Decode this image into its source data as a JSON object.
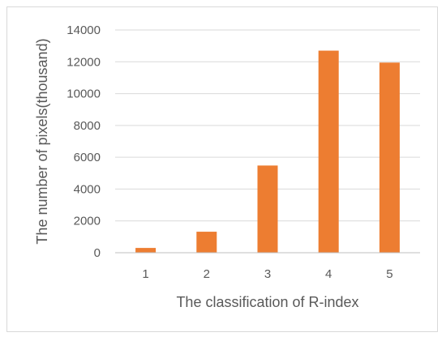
{
  "chart_data": {
    "type": "bar",
    "title": "",
    "xlabel": "The classification of R-index",
    "ylabel": "The number of pixels(thousand)",
    "categories": [
      "1",
      "2",
      "3",
      "4",
      "5"
    ],
    "values": [
      300,
      1320,
      5480,
      12700,
      11950
    ],
    "ylim": [
      0,
      14000
    ],
    "yticks": [
      0,
      2000,
      4000,
      6000,
      8000,
      10000,
      12000,
      14000
    ],
    "grid": true,
    "legend": "none",
    "bar_color": "#ED7D31",
    "grid_color": "#D9D9D9",
    "axis_color": "#BFBFBF"
  }
}
